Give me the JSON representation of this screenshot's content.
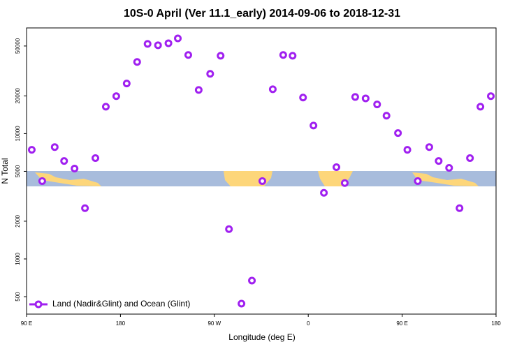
{
  "chart_data": {
    "type": "scatter",
    "title": "10S-0 April (Ver 11.1_early)   2014-09-06 to 2018-12-31",
    "x_label": "Longitude (deg E)",
    "y_label": "N Total",
    "ylog": true,
    "legend": "bottom-left",
    "xlim": [
      90,
      540
    ],
    "ylim": [
      363,
      69700
    ],
    "xticks": [
      {
        "value": 90,
        "label": "90 E"
      },
      180,
      {
        "value": 270,
        "label": "90 W"
      },
      {
        "value": 360,
        "label": "0"
      },
      {
        "value": 450,
        "label": "90 E"
      },
      {
        "value": 540,
        "label": "180"
      }
    ],
    "yticks": [
      500,
      1000,
      2000,
      5000,
      10000,
      20000,
      50000
    ],
    "series": [
      {
        "name": "Land (Nadir&Glint) and Ocean (Glint)",
        "color": "#a020f0",
        "x": [
          95,
          105,
          117,
          126,
          136,
          146,
          156,
          166,
          176,
          186,
          196,
          206,
          216,
          226,
          235,
          245,
          255,
          266,
          276,
          284,
          296,
          306,
          316,
          326,
          336,
          345,
          355,
          365,
          375,
          387,
          395,
          405,
          415,
          426,
          435,
          446,
          455,
          465,
          476,
          485,
          495,
          505,
          515,
          525,
          535
        ],
        "values": [
          7430,
          4180,
          7810,
          6050,
          5260,
          2540,
          6380,
          16400,
          19900,
          25100,
          37300,
          52000,
          50700,
          52600,
          57500,
          42400,
          22300,
          30000,
          41800,
          1730,
          440,
          672,
          4180,
          22600,
          42400,
          41800,
          19400,
          11600,
          3370,
          5400,
          4030,
          19600,
          19100,
          17100,
          13900,
          10100,
          7430,
          4180,
          7810,
          6050,
          5330,
          2540,
          6380,
          16400,
          19900
        ]
      }
    ]
  }
}
